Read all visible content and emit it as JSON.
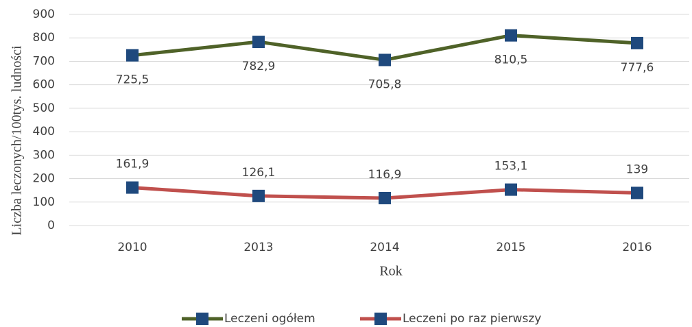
{
  "chart_data": {
    "type": "line",
    "y_label": "Liczba leczonych/100tys. ludności",
    "x_label": "Rok",
    "categories": [
      "2010",
      "2013",
      "2014",
      "2015",
      "2016"
    ],
    "series": [
      {
        "name": "Leczeni ogółem",
        "color": "#4f6228",
        "marker_color": "#1f497d",
        "label_position": "below",
        "values": [
          725.5,
          782.9,
          705.8,
          810.5,
          777.6
        ],
        "value_labels": [
          "725,5",
          "782,9",
          "705,8",
          "810,5",
          "777,6"
        ]
      },
      {
        "name": "Leczeni po raz pierwszy",
        "color": "#c0504d",
        "marker_color": "#1f497d",
        "label_position": "above",
        "values": [
          161.9,
          126.1,
          116.9,
          153.1,
          139
        ],
        "value_labels": [
          "161,9",
          "126,1",
          "116,9",
          "153,1",
          "139"
        ]
      }
    ],
    "ylim": [
      0,
      900
    ],
    "yticks": [
      0,
      100,
      200,
      300,
      400,
      500,
      600,
      700,
      800,
      900
    ],
    "grid": true,
    "legend": "bottom"
  }
}
